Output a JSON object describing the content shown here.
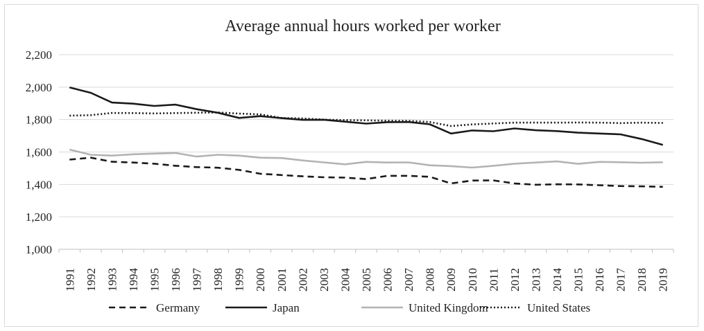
{
  "chart_data": {
    "type": "line",
    "title": "Average annual hours worked per worker",
    "xlabel": "",
    "ylabel": "",
    "ylim": [
      1000,
      2200
    ],
    "y_ticks": [
      1000,
      1200,
      1400,
      1600,
      1800,
      2000,
      2200
    ],
    "y_tick_labels": [
      "1,000",
      "1,200",
      "1,400",
      "1,600",
      "1,800",
      "2,000",
      "2,200"
    ],
    "grid": true,
    "legend_position": "bottom",
    "categories": [
      "1991",
      "1992",
      "1993",
      "1994",
      "1995",
      "1996",
      "1997",
      "1998",
      "1999",
      "2000",
      "2001",
      "2002",
      "2003",
      "2004",
      "2005",
      "2006",
      "2007",
      "2008",
      "2009",
      "2010",
      "2011",
      "2012",
      "2013",
      "2014",
      "2015",
      "2016",
      "2017",
      "2018",
      "2019"
    ],
    "series": [
      {
        "name": "Germany",
        "style": "dashed",
        "color": "#1a1a1a",
        "values": [
          1553,
          1565,
          1540,
          1535,
          1528,
          1515,
          1507,
          1503,
          1490,
          1466,
          1458,
          1450,
          1444,
          1442,
          1433,
          1453,
          1453,
          1447,
          1406,
          1424,
          1425,
          1406,
          1398,
          1401,
          1400,
          1395,
          1390,
          1388,
          1385
        ]
      },
      {
        "name": "Japan",
        "style": "solid",
        "color": "#1a1a1a",
        "values": [
          1998,
          1965,
          1905,
          1898,
          1884,
          1892,
          1864,
          1842,
          1810,
          1821,
          1809,
          1798,
          1799,
          1787,
          1775,
          1784,
          1785,
          1771,
          1714,
          1733,
          1728,
          1745,
          1734,
          1729,
          1719,
          1714,
          1709,
          1680,
          1644
        ]
      },
      {
        "name": "United Kingdom",
        "style": "solid",
        "color": "#b3b3b3",
        "values": [
          1615,
          1583,
          1578,
          1586,
          1590,
          1594,
          1572,
          1583,
          1578,
          1565,
          1563,
          1548,
          1536,
          1524,
          1539,
          1535,
          1536,
          1518,
          1513,
          1504,
          1515,
          1528,
          1535,
          1542,
          1527,
          1539,
          1537,
          1534,
          1537
        ]
      },
      {
        "name": "United States",
        "style": "dotted",
        "color": "#1a1a1a",
        "values": [
          1824,
          1827,
          1841,
          1840,
          1838,
          1840,
          1842,
          1844,
          1837,
          1832,
          1810,
          1807,
          1800,
          1797,
          1795,
          1793,
          1792,
          1785,
          1760,
          1770,
          1776,
          1781,
          1781,
          1781,
          1782,
          1781,
          1778,
          1781,
          1779
        ]
      }
    ]
  }
}
